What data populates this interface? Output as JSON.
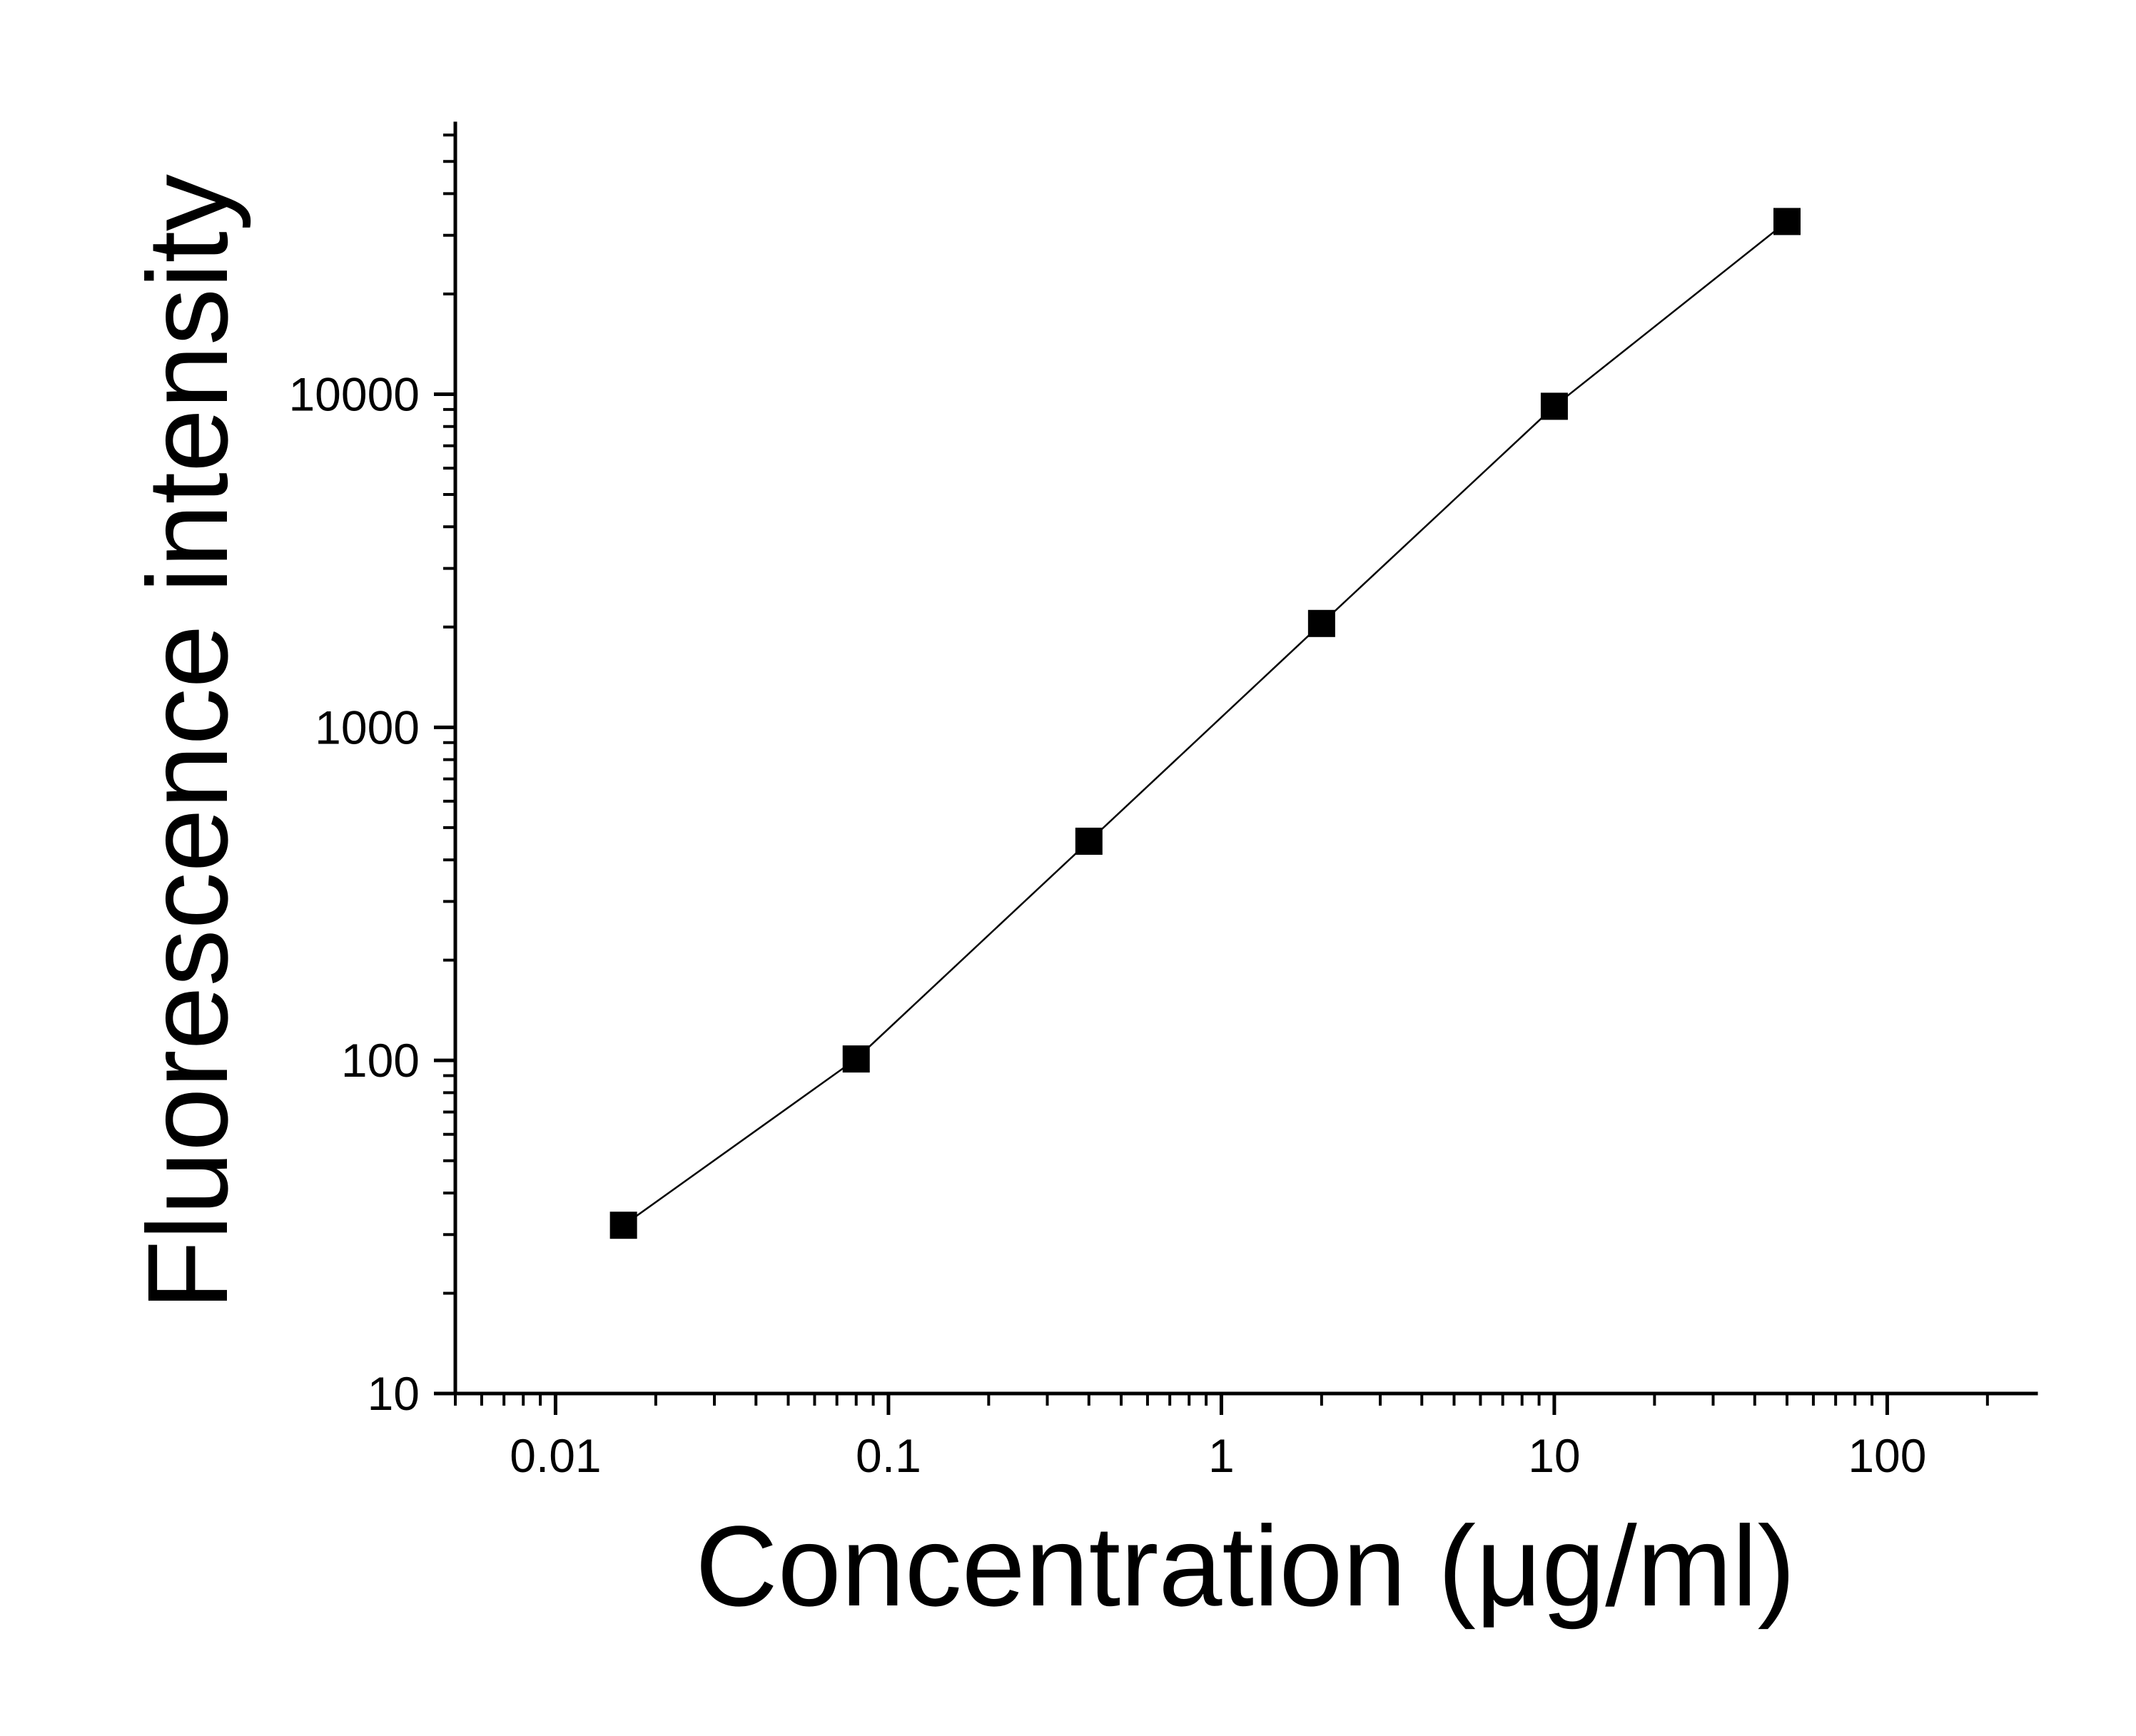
{
  "chart_data": {
    "type": "line",
    "xlabel": "Concentration (μg/ml)",
    "ylabel": "Fluorescence intensity",
    "x_scale": "log",
    "y_scale": "log",
    "xlim": [
      0.005,
      280
    ],
    "ylim": [
      10,
      65000
    ],
    "x_ticks": [
      {
        "value": 0.01,
        "label": "0.01"
      },
      {
        "value": 0.1,
        "label": "0.1"
      },
      {
        "value": 1,
        "label": "1"
      },
      {
        "value": 10,
        "label": "10"
      },
      {
        "value": 100,
        "label": "100"
      }
    ],
    "y_ticks": [
      {
        "value": 10,
        "label": "10"
      },
      {
        "value": 100,
        "label": "100"
      },
      {
        "value": 1000,
        "label": "1000"
      },
      {
        "value": 10000,
        "label": "10000"
      }
    ],
    "grid": false,
    "legend": "none",
    "marker": "square",
    "color": "#000000",
    "series": [
      {
        "x": [
          0.016,
          0.08,
          0.4,
          2,
          10,
          50
        ],
        "y": [
          32,
          101,
          455,
          2050,
          9200,
          33000
        ]
      }
    ]
  }
}
